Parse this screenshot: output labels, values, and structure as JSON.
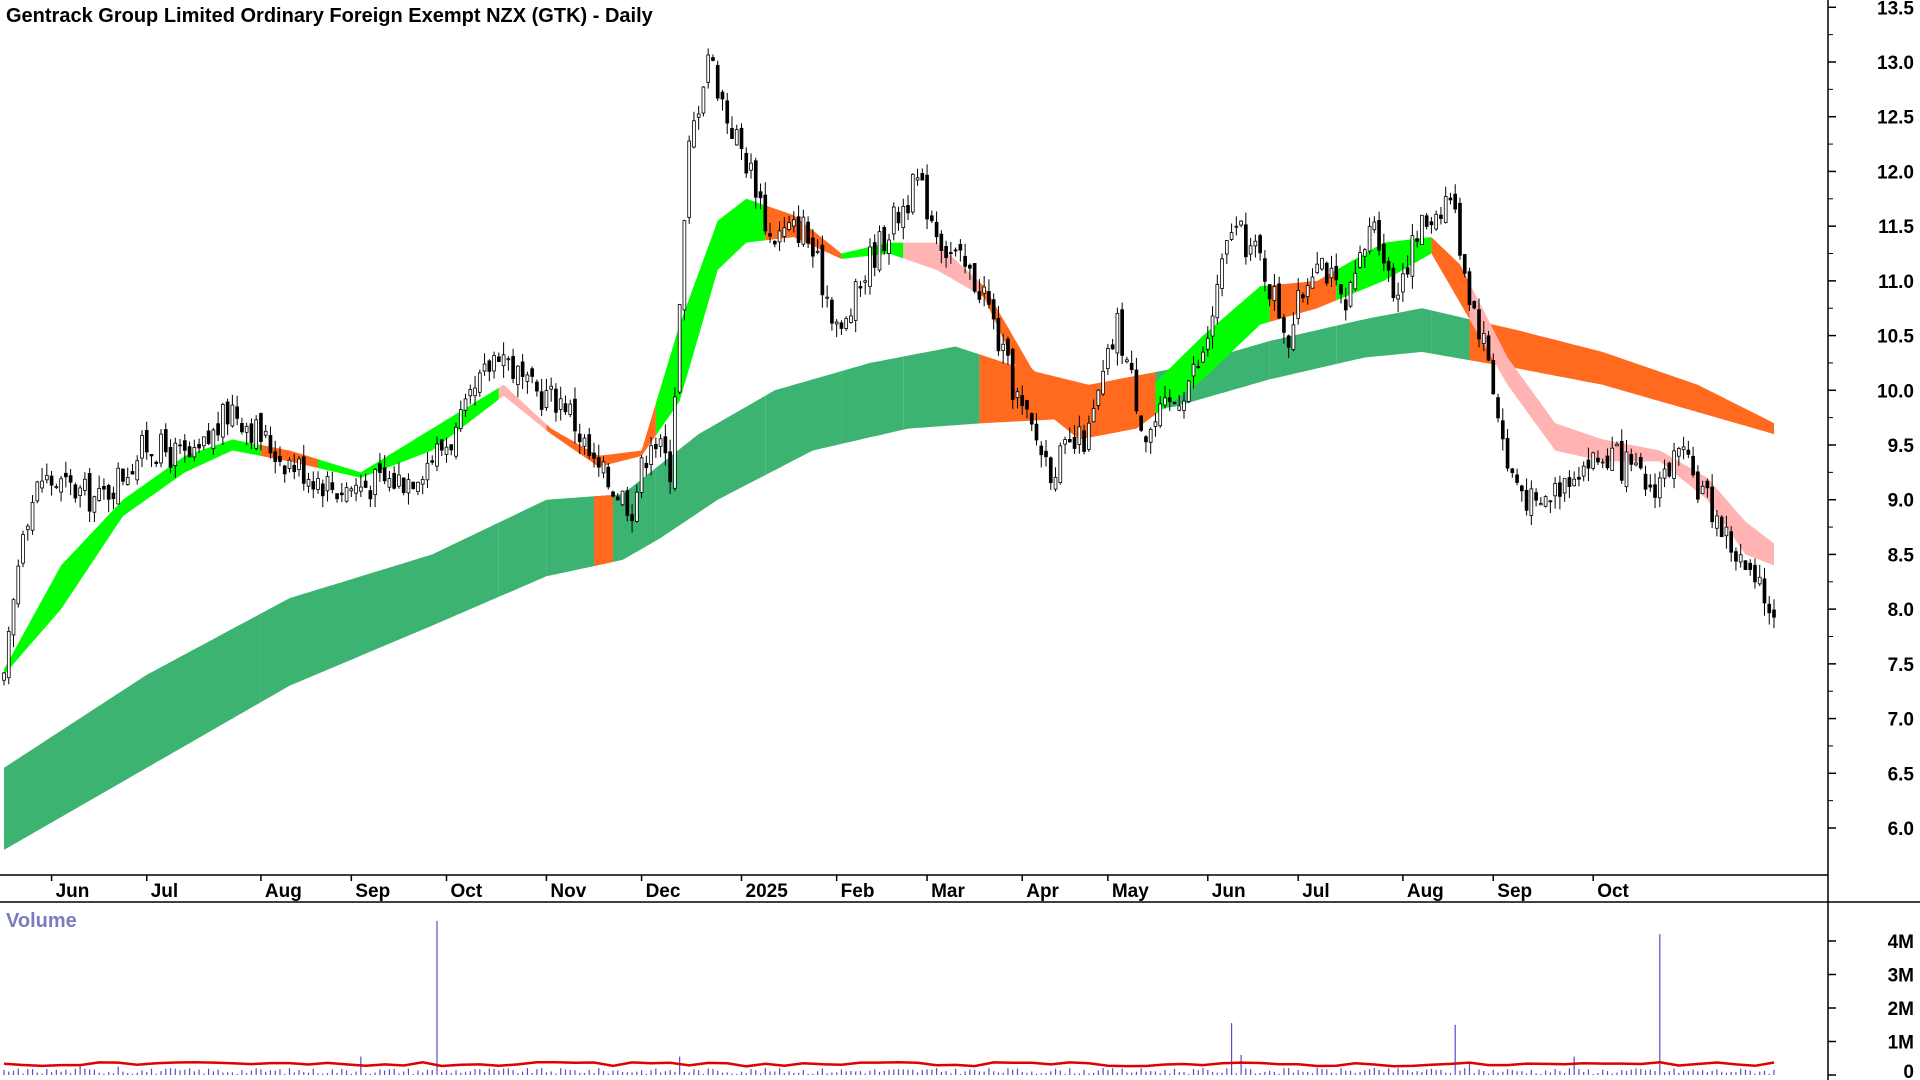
{
  "chart_data": {
    "type": "candlestick",
    "title": "Gentrack Group Limited Ordinary Foreign Exempt NZX (GTK) - Daily",
    "volume_label": "Volume",
    "x_tick_labels": [
      "Jun",
      "Jul",
      "Aug",
      "Sep",
      "Oct",
      "Nov",
      "Dec",
      "2025",
      "Feb",
      "Mar",
      "Apr",
      "May",
      "Jun",
      "Jul",
      "Aug",
      "Sep",
      "Oct"
    ],
    "y_tick_labels": [
      "6.0",
      "6.5",
      "7.0",
      "7.5",
      "8.0",
      "8.5",
      "9.0",
      "9.5",
      "10.0",
      "10.5",
      "11.0",
      "11.5",
      "12.0",
      "12.5",
      "13.0",
      "13.5"
    ],
    "volume_tick_labels": [
      "0",
      "1M",
      "2M",
      "3M",
      "4M"
    ],
    "ylim": [
      5.6,
      13.6
    ],
    "volume_ylim": [
      0,
      4.5
    ],
    "colors": {
      "short_band_up": "#00ff00",
      "short_band_down_strong": "#ff6a1f",
      "short_band_down_weak": "#ffb3b3",
      "long_band_up": "#3cb371",
      "long_band_down": "#ff6a1f",
      "volume_bar": "#5050c8",
      "volume_average": "#e00000",
      "candle": "#000000"
    },
    "price_path": [
      [
        0,
        7.3
      ],
      [
        4,
        8.8
      ],
      [
        8,
        9.2
      ],
      [
        20,
        9.0
      ],
      [
        30,
        9.5
      ],
      [
        40,
        9.35
      ],
      [
        48,
        9.85
      ],
      [
        58,
        9.4
      ],
      [
        70,
        9.1
      ],
      [
        85,
        9.2
      ],
      [
        95,
        9.6
      ],
      [
        104,
        10.4
      ],
      [
        110,
        10.0
      ],
      [
        118,
        9.9
      ],
      [
        124,
        9.3
      ],
      [
        132,
        8.95
      ],
      [
        136,
        9.6
      ],
      [
        140,
        9.3
      ],
      [
        144,
        12.2
      ],
      [
        148,
        13.1
      ],
      [
        152,
        12.5
      ],
      [
        158,
        11.9
      ],
      [
        161,
        11.4
      ],
      [
        168,
        11.5
      ],
      [
        176,
        10.5
      ],
      [
        182,
        11.2
      ],
      [
        192,
        11.9
      ],
      [
        198,
        11.3
      ],
      [
        206,
        10.9
      ],
      [
        210,
        10.3
      ],
      [
        214,
        9.8
      ],
      [
        220,
        9.3
      ],
      [
        228,
        9.6
      ],
      [
        234,
        10.6
      ],
      [
        240,
        9.6
      ],
      [
        246,
        9.9
      ],
      [
        252,
        10.3
      ],
      [
        258,
        11.5
      ],
      [
        264,
        11.2
      ],
      [
        270,
        10.5
      ],
      [
        276,
        11.3
      ],
      [
        282,
        10.7
      ],
      [
        288,
        11.6
      ],
      [
        292,
        10.9
      ],
      [
        298,
        11.5
      ],
      [
        304,
        11.8
      ],
      [
        308,
        10.9
      ],
      [
        312,
        10.3
      ],
      [
        316,
        9.3
      ],
      [
        322,
        8.9
      ],
      [
        330,
        9.3
      ],
      [
        338,
        9.4
      ],
      [
        346,
        9.1
      ],
      [
        352,
        9.4
      ],
      [
        358,
        9.0
      ],
      [
        364,
        8.5
      ],
      [
        368,
        8.2
      ],
      [
        372,
        8.0
      ]
    ],
    "short_band_upper": [
      [
        0,
        7.45
      ],
      [
        12,
        8.4
      ],
      [
        25,
        9.0
      ],
      [
        38,
        9.4
      ],
      [
        48,
        9.55
      ],
      [
        60,
        9.45
      ],
      [
        75,
        9.25
      ],
      [
        90,
        9.65
      ],
      [
        105,
        10.05
      ],
      [
        115,
        9.65
      ],
      [
        125,
        9.4
      ],
      [
        134,
        9.45
      ],
      [
        142,
        10.6
      ],
      [
        150,
        11.55
      ],
      [
        156,
        11.75
      ],
      [
        166,
        11.6
      ],
      [
        176,
        11.25
      ],
      [
        186,
        11.35
      ],
      [
        196,
        11.35
      ],
      [
        206,
        10.95
      ],
      [
        216,
        10.2
      ],
      [
        226,
        9.8
      ],
      [
        238,
        9.9
      ],
      [
        252,
        10.5
      ],
      [
        264,
        10.95
      ],
      [
        276,
        11.0
      ],
      [
        290,
        11.35
      ],
      [
        300,
        11.4
      ],
      [
        306,
        11.15
      ],
      [
        316,
        10.3
      ],
      [
        326,
        9.7
      ],
      [
        336,
        9.55
      ],
      [
        348,
        9.45
      ],
      [
        358,
        9.2
      ],
      [
        366,
        8.8
      ],
      [
        372,
        8.6
      ]
    ],
    "short_band_lower": [
      [
        0,
        7.4
      ],
      [
        12,
        8.0
      ],
      [
        25,
        8.85
      ],
      [
        38,
        9.25
      ],
      [
        48,
        9.45
      ],
      [
        60,
        9.35
      ],
      [
        75,
        9.2
      ],
      [
        90,
        9.45
      ],
      [
        105,
        9.95
      ],
      [
        115,
        9.6
      ],
      [
        125,
        9.3
      ],
      [
        134,
        9.4
      ],
      [
        142,
        9.9
      ],
      [
        150,
        11.1
      ],
      [
        156,
        11.35
      ],
      [
        166,
        11.4
      ],
      [
        176,
        11.2
      ],
      [
        186,
        11.25
      ],
      [
        196,
        11.1
      ],
      [
        206,
        10.85
      ],
      [
        216,
        9.9
      ],
      [
        226,
        9.55
      ],
      [
        238,
        9.65
      ],
      [
        252,
        10.1
      ],
      [
        264,
        10.6
      ],
      [
        276,
        10.75
      ],
      [
        290,
        11.0
      ],
      [
        300,
        11.25
      ],
      [
        306,
        10.8
      ],
      [
        316,
        10.05
      ],
      [
        326,
        9.45
      ],
      [
        336,
        9.35
      ],
      [
        348,
        9.35
      ],
      [
        358,
        9.0
      ],
      [
        366,
        8.5
      ],
      [
        372,
        8.4
      ]
    ],
    "long_band_upper": [
      [
        0,
        6.55
      ],
      [
        30,
        7.4
      ],
      [
        60,
        8.1
      ],
      [
        90,
        8.5
      ],
      [
        114,
        9.0
      ],
      [
        130,
        9.05
      ],
      [
        146,
        9.6
      ],
      [
        162,
        10.0
      ],
      [
        182,
        10.25
      ],
      [
        200,
        10.4
      ],
      [
        214,
        10.2
      ],
      [
        228,
        10.05
      ],
      [
        246,
        10.2
      ],
      [
        266,
        10.45
      ],
      [
        286,
        10.65
      ],
      [
        298,
        10.75
      ],
      [
        318,
        10.55
      ],
      [
        336,
        10.35
      ],
      [
        356,
        10.05
      ],
      [
        372,
        9.7
      ]
    ],
    "long_band_lower": [
      [
        0,
        5.8
      ],
      [
        30,
        6.55
      ],
      [
        60,
        7.3
      ],
      [
        90,
        7.85
      ],
      [
        114,
        8.3
      ],
      [
        130,
        8.45
      ],
      [
        138,
        8.65
      ],
      [
        150,
        9.0
      ],
      [
        170,
        9.45
      ],
      [
        190,
        9.65
      ],
      [
        206,
        9.7
      ],
      [
        228,
        9.75
      ],
      [
        246,
        9.85
      ],
      [
        266,
        10.1
      ],
      [
        286,
        10.3
      ],
      [
        298,
        10.35
      ],
      [
        318,
        10.2
      ],
      [
        336,
        10.05
      ],
      [
        356,
        9.8
      ],
      [
        372,
        9.6
      ]
    ],
    "volume_spikes": [
      [
        16,
        0.3
      ],
      [
        24,
        0.25
      ],
      [
        75,
        0.55
      ],
      [
        91,
        4.6
      ],
      [
        142,
        0.55
      ],
      [
        258,
        1.55
      ],
      [
        260,
        0.6
      ],
      [
        305,
        1.5
      ],
      [
        308,
        0.35
      ],
      [
        330,
        0.55
      ],
      [
        348,
        4.2
      ]
    ],
    "volume_average_level": 0.32,
    "segments": [
      {
        "from": 0,
        "to": 54,
        "short": "up",
        "long": "up"
      },
      {
        "from": 54,
        "to": 66,
        "short": "down_strong",
        "long": "up"
      },
      {
        "from": 66,
        "to": 104,
        "short": "up",
        "long": "up"
      },
      {
        "from": 104,
        "to": 114,
        "short": "down_weak",
        "long": "up"
      },
      {
        "from": 114,
        "to": 127,
        "short": "down_strong",
        "long": "up"
      },
      {
        "from": 124,
        "to": 128,
        "short": "down_strong",
        "long": "down"
      },
      {
        "from": 128,
        "to": 137,
        "short": "down_strong",
        "long": "up"
      },
      {
        "from": 137,
        "to": 160,
        "short": "up",
        "long": "up"
      },
      {
        "from": 160,
        "to": 176,
        "short": "down_strong",
        "long": "up"
      },
      {
        "from": 176,
        "to": 189,
        "short": "up",
        "long": "up"
      },
      {
        "from": 189,
        "to": 205,
        "short": "down_weak",
        "long": "up"
      },
      {
        "from": 205,
        "to": 242,
        "short": "down_strong",
        "long": "down"
      },
      {
        "from": 242,
        "to": 266,
        "short": "up",
        "long": "up"
      },
      {
        "from": 266,
        "to": 280,
        "short": "down_strong",
        "long": "up"
      },
      {
        "from": 280,
        "to": 300,
        "short": "up",
        "long": "up"
      },
      {
        "from": 300,
        "to": 308,
        "short": "down_strong",
        "long": "up"
      },
      {
        "from": 308,
        "to": 372,
        "short": "down_weak",
        "long": "down"
      }
    ]
  }
}
